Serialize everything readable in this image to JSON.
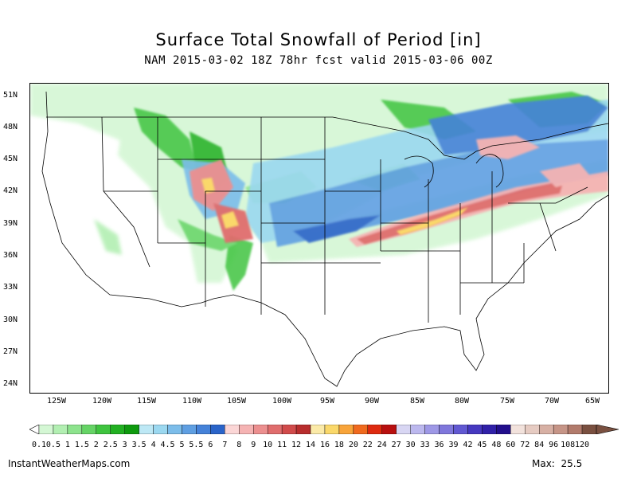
{
  "header": {
    "title": "Surface Total Snowfall of Period [in]",
    "subtitle": "NAM 2015-03-02 18Z 78hr fcst valid 2015-03-06 00Z"
  },
  "map": {
    "lat_labels": [
      "51N",
      "48N",
      "45N",
      "42N",
      "39N",
      "36N",
      "33N",
      "30N",
      "27N",
      "24N"
    ],
    "lon_labels": [
      "125W",
      "120W",
      "115W",
      "110W",
      "105W",
      "100W",
      "95W",
      "90W",
      "85W",
      "80W",
      "75W",
      "70W",
      "65W"
    ],
    "lat_values": [
      51,
      48,
      45,
      42,
      39,
      36,
      33,
      30,
      27,
      24
    ],
    "lon_values": [
      -125,
      -120,
      -115,
      -110,
      -105,
      -100,
      -95,
      -90,
      -85,
      -80,
      -75,
      -70,
      -65
    ],
    "max_label": "Max:",
    "max_value": "25.5"
  },
  "legend": {
    "labels": [
      "0.1",
      "0.5",
      "1",
      "1.5",
      "2",
      "2.5",
      "3",
      "3.5",
      "4",
      "4.5",
      "5",
      "5.5",
      "6",
      "7",
      "8",
      "9",
      "10",
      "11",
      "12",
      "14",
      "16",
      "18",
      "20",
      "22",
      "24",
      "27",
      "30",
      "33",
      "36",
      "39",
      "42",
      "45",
      "48",
      "60",
      "72",
      "84",
      "96",
      "108",
      "120"
    ],
    "colors": [
      "#d4f7d4",
      "#b2efb2",
      "#8de38d",
      "#66d466",
      "#3fc43f",
      "#22b022",
      "#0e9a0e",
      "#bde8f5",
      "#9bd8f0",
      "#7cbdea",
      "#5f9fe2",
      "#4582d9",
      "#2a64c9",
      "#fbd6d6",
      "#f5b3b3",
      "#ec8f8f",
      "#e06d6d",
      "#d14b4b",
      "#b82d2d",
      "#fbeaa8",
      "#fad86a",
      "#f8a43a",
      "#f06a1e",
      "#de2a10",
      "#b80f0f",
      "#d8d6f3",
      "#bcb8ee",
      "#9e98e6",
      "#7f77dc",
      "#6158d2",
      "#4638c0",
      "#3020a8",
      "#220e8c",
      "#f2e2dc",
      "#e6cbc2",
      "#d7b0a4",
      "#c69587",
      "#b27b6c",
      "#7a5040"
    ]
  },
  "footer": {
    "source": "InstantWeatherMaps.com"
  }
}
